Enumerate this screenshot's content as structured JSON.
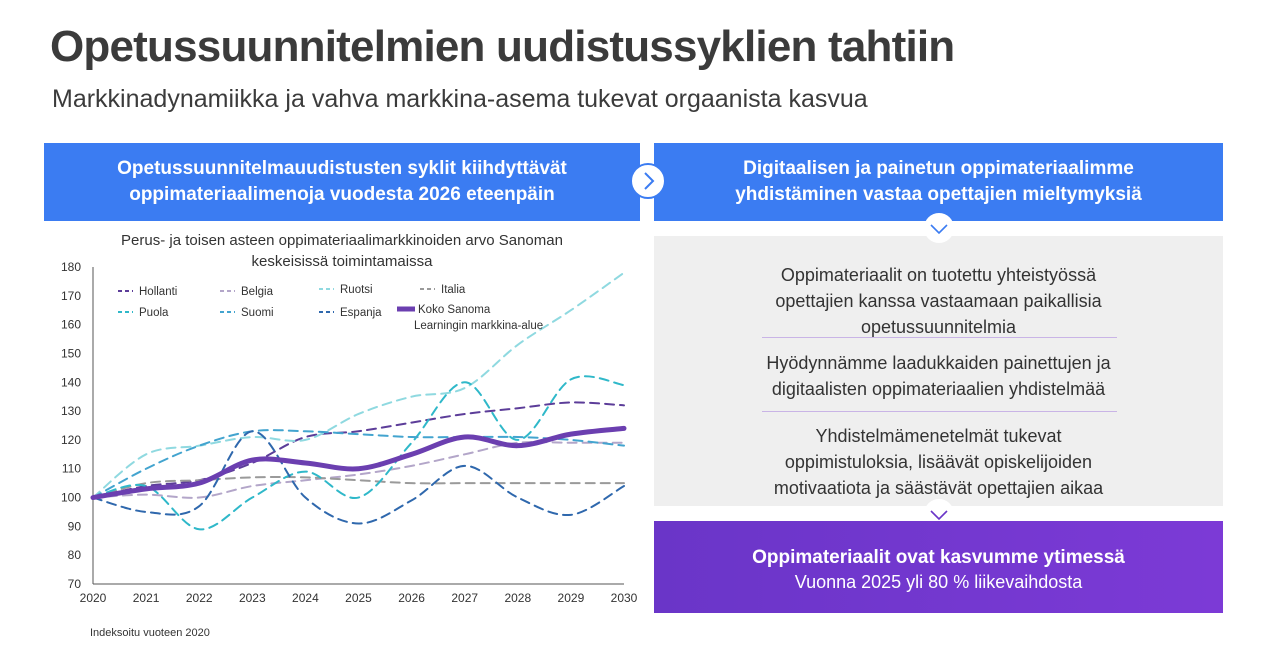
{
  "page": {
    "title": "Opetussuunnitelmien uudistussyklien tahtiin",
    "subtitle": "Markkinadynamiikka ja vahva markkina-asema tukevat orgaanista kasvua"
  },
  "left_panel": {
    "header_line1": "Opetussuunnitelmauudistusten syklit kiihdyttävät",
    "header_line2": "oppimateriaalimenoja vuodesta 2026 eteenpäin",
    "footnote": "Indeksoitu vuoteen 2020"
  },
  "right_panel": {
    "header_line1": "Digitaalisen ja painetun oppimateriaalimme",
    "header_line2": "yhdistäminen vastaa opettajien mieltymyksiä",
    "points": [
      {
        "line1": "Oppimateriaalit on tuotettu yhteistyössä",
        "line2": "opettajien kanssa vastaamaan paikallisia",
        "line3": "opetussuunnitelmia"
      },
      {
        "line1": "Hyödynnämme laadukkaiden painettujen ja",
        "line2": "digitaalisten oppimateriaalien yhdistelmää"
      },
      {
        "line1": "Yhdistelmämenetelmät tukevat",
        "line2": "oppimistuloksia, lisäävät opiskelijoiden",
        "line3": "motivaatiota ja säästävät opettajien aikaa"
      }
    ],
    "highlight_title": "Oppimateriaalit ovat kasvumme ytimessä",
    "highlight_sub": "Vuonna 2025 yli 80 % liikevaihdosta"
  },
  "icons": {
    "right_arrow": "chevron-right-icon",
    "down_arrow": "chevron-down-icon"
  },
  "colors": {
    "blue": "#3b7cf2",
    "purple": "#6a35c8",
    "grey_bg": "#efefef"
  },
  "chart_data": {
    "type": "line",
    "title_line1": "Perus- ja toisen asteen oppimateriaalimarkkinoiden arvo Sanoman",
    "title_line2": "keskeisissä toimintamaissa",
    "xlabel": "",
    "ylabel": "",
    "x": [
      2020,
      2021,
      2022,
      2023,
      2024,
      2025,
      2026,
      2027,
      2028,
      2029,
      2030
    ],
    "ylim": [
      70,
      180
    ],
    "yticks": [
      70,
      80,
      90,
      100,
      110,
      120,
      130,
      140,
      150,
      160,
      170,
      180
    ],
    "series": [
      {
        "name": "Hollanti",
        "color": "#5c3d99",
        "dashed": true,
        "width": 2,
        "values": [
          100,
          104,
          106,
          112,
          121,
          123,
          126,
          129,
          131,
          133,
          132
        ]
      },
      {
        "name": "Belgia",
        "color": "#b3a6c9",
        "dashed": true,
        "width": 2,
        "values": [
          100,
          101,
          100,
          104,
          106,
          108,
          111,
          115,
          119,
          119,
          119
        ]
      },
      {
        "name": "Ruotsi",
        "color": "#8fd9e0",
        "dashed": true,
        "width": 2,
        "values": [
          100,
          115,
          118,
          121,
          120,
          129,
          135,
          138,
          153,
          165,
          178
        ]
      },
      {
        "name": "Italia",
        "color": "#9a9a9a",
        "dashed": true,
        "width": 2,
        "values": [
          100,
          105,
          106,
          107,
          107,
          106,
          105,
          105,
          105,
          105,
          105
        ]
      },
      {
        "name": "Puola",
        "color": "#2fb8c9",
        "dashed": true,
        "width": 2,
        "values": [
          100,
          104,
          89,
          100,
          109,
          100,
          119,
          140,
          120,
          141,
          139
        ]
      },
      {
        "name": "Suomi",
        "color": "#43a4cf",
        "dashed": true,
        "width": 2,
        "values": [
          100,
          110,
          118,
          123,
          123,
          122,
          121,
          121,
          121,
          120,
          118
        ]
      },
      {
        "name": "Espanja",
        "color": "#2f68ad",
        "dashed": true,
        "width": 2,
        "values": [
          100,
          95,
          97,
          123,
          100,
          91,
          99,
          111,
          100,
          94,
          104
        ]
      },
      {
        "name": "Koko Sanoma Learningin markkina-alue",
        "color": "#6b3fb0",
        "dashed": false,
        "width": 5,
        "values": [
          100,
          103,
          105,
          113,
          112,
          110,
          115,
          121,
          118,
          122,
          124
        ]
      }
    ],
    "legend": [
      {
        "label": "Hollanti"
      },
      {
        "label": "Belgia"
      },
      {
        "label": "Ruotsi"
      },
      {
        "label": "Italia"
      },
      {
        "label": "Puola"
      },
      {
        "label": "Suomi"
      },
      {
        "label": "Espanja"
      },
      {
        "label_line1": "Koko Sanoma",
        "label_line2": "Learningin markkina-alue"
      }
    ],
    "legend_position": "top-left",
    "grid": false
  }
}
